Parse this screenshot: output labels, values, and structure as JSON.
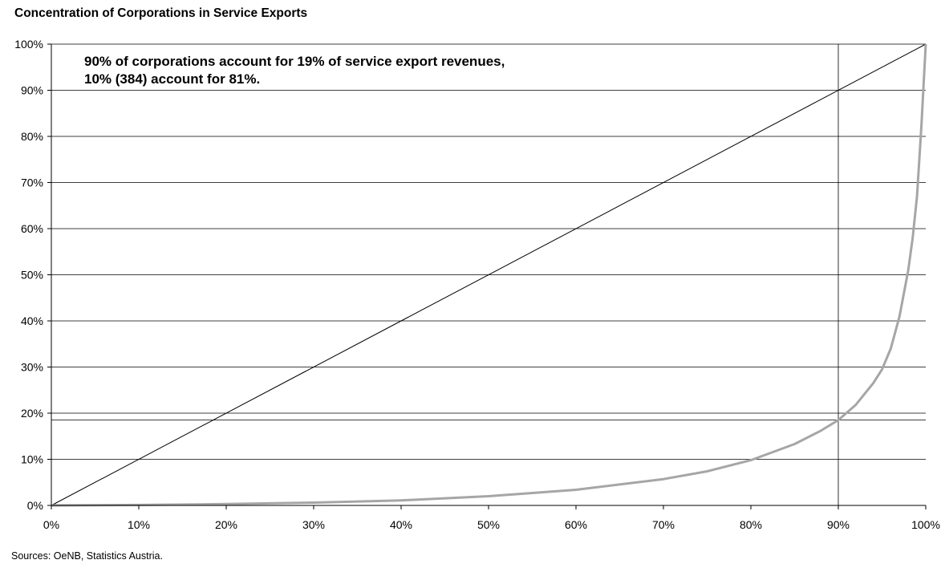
{
  "chart_data": {
    "type": "line",
    "title": "Concentration of Corporations in Service Exports",
    "source": "Sources: OeNB, Statistics Austria.",
    "annotation": [
      "90% of corporations account for 19% of service export revenues,",
      "10% (384) account for 81%."
    ],
    "xlim": [
      0,
      100
    ],
    "ylim": [
      0,
      100
    ],
    "x_ticks": [
      "0%",
      "10%",
      "20%",
      "30%",
      "40%",
      "50%",
      "60%",
      "70%",
      "80%",
      "90%",
      "100%"
    ],
    "y_ticks": [
      "0%",
      "10%",
      "20%",
      "30%",
      "40%",
      "50%",
      "60%",
      "70%",
      "80%",
      "90%",
      "100%"
    ],
    "grid": "horizontal",
    "reference_lines": {
      "vertical_x": 90,
      "horizontal_y": 18.5
    },
    "colors": {
      "equality": "#000000",
      "concentration": "#a6a6a6",
      "grid": "#000000"
    },
    "series": [
      {
        "values": [
          [
            0,
            0
          ],
          [
            100,
            100
          ]
        ]
      },
      {
        "values": [
          [
            0,
            0
          ],
          [
            10,
            0.1
          ],
          [
            20,
            0.3
          ],
          [
            30,
            0.6
          ],
          [
            40,
            1.1
          ],
          [
            50,
            2
          ],
          [
            60,
            3.4
          ],
          [
            70,
            5.7
          ],
          [
            75,
            7.4
          ],
          [
            80,
            9.8
          ],
          [
            85,
            13.3
          ],
          [
            88,
            16.2
          ],
          [
            90,
            18.5
          ],
          [
            92,
            21.8
          ],
          [
            94,
            26.5
          ],
          [
            95,
            29.5
          ],
          [
            96,
            34
          ],
          [
            97,
            41
          ],
          [
            98,
            51
          ],
          [
            98.5,
            58
          ],
          [
            99,
            67
          ],
          [
            99.5,
            82
          ],
          [
            100,
            100
          ]
        ]
      }
    ]
  }
}
